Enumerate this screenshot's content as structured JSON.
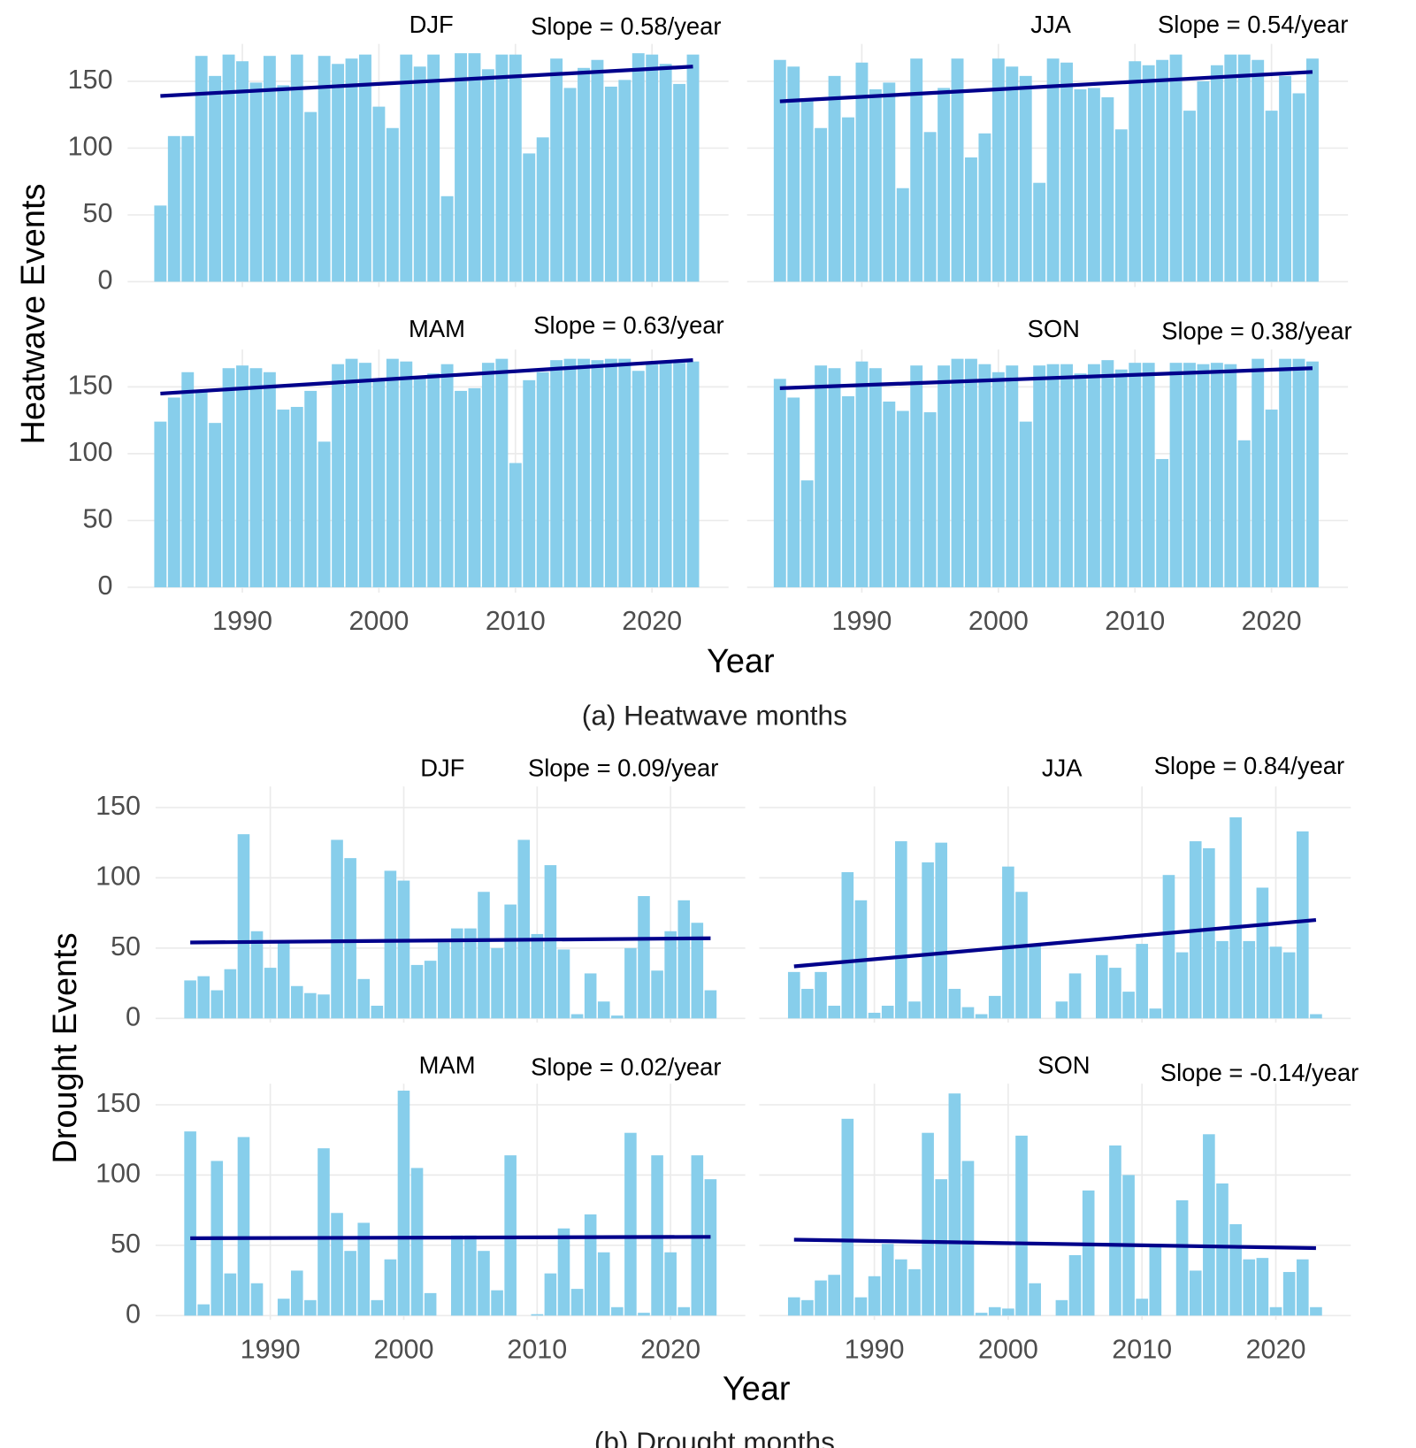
{
  "figures": [
    {
      "caption": "(a) Heatwave months",
      "xlabel": "Year",
      "ylabel": "Heatwave Events"
    },
    {
      "caption": "(b) Drought months",
      "xlabel": "Year",
      "ylabel": "Drought Events"
    }
  ],
  "chart_data": [
    {
      "type": "bar",
      "title": "DJF",
      "annotation": "Slope = 0.58/year",
      "color": "#87ceeb",
      "grid": true,
      "x": [
        1984,
        1985,
        1986,
        1987,
        1988,
        1989,
        1990,
        1991,
        1992,
        1993,
        1994,
        1995,
        1996,
        1997,
        1998,
        1999,
        2000,
        2001,
        2002,
        2003,
        2004,
        2005,
        2006,
        2007,
        2008,
        2009,
        2010,
        2011,
        2012,
        2013,
        2014,
        2015,
        2016,
        2017,
        2018,
        2019,
        2020,
        2021,
        2022,
        2023
      ],
      "values": [
        57,
        109,
        109,
        169,
        154,
        170,
        165,
        149,
        169,
        147,
        170,
        127,
        169,
        163,
        167,
        170,
        131,
        115,
        170,
        161,
        170,
        64,
        171,
        171,
        159,
        170,
        170,
        96,
        108,
        167,
        145,
        160,
        166,
        146,
        151,
        171,
        170,
        163,
        148,
        170
      ],
      "trend": {
        "color": "#00008b",
        "x": [
          1984,
          2023
        ],
        "values": [
          139,
          161
        ]
      },
      "xlim": [
        1981.6,
        2025.6
      ],
      "xticks": [
        1990,
        2000,
        2010,
        2020
      ],
      "ylim": [
        -4,
        178
      ],
      "yticks": [
        0,
        50,
        100,
        150
      ]
    },
    {
      "type": "bar",
      "title": "JJA",
      "annotation": "Slope = 0.54/year",
      "color": "#87ceeb",
      "grid": true,
      "x": [
        1984,
        1985,
        1986,
        1987,
        1988,
        1989,
        1990,
        1991,
        1992,
        1993,
        1994,
        1995,
        1996,
        1997,
        1998,
        1999,
        2000,
        2001,
        2002,
        2003,
        2004,
        2005,
        2006,
        2007,
        2008,
        2009,
        2010,
        2011,
        2012,
        2013,
        2014,
        2015,
        2016,
        2017,
        2018,
        2019,
        2020,
        2021,
        2022,
        2023
      ],
      "values": [
        166,
        161,
        136,
        115,
        154,
        123,
        164,
        144,
        149,
        70,
        167,
        112,
        145,
        167,
        93,
        111,
        167,
        161,
        154,
        74,
        167,
        164,
        144,
        145,
        138,
        114,
        165,
        162,
        166,
        170,
        128,
        150,
        162,
        170,
        170,
        166,
        128,
        154,
        141,
        167
      ],
      "trend": {
        "color": "#00008b",
        "x": [
          1984,
          2023
        ],
        "values": [
          135,
          157
        ]
      },
      "xlim": [
        1981.6,
        2025.6
      ],
      "xticks": [
        1990,
        2000,
        2010,
        2020
      ],
      "ylim": [
        -4,
        178
      ],
      "yticks": [
        0,
        50,
        100,
        150
      ]
    },
    {
      "type": "bar",
      "title": "MAM",
      "annotation": "Slope = 0.63/year",
      "color": "#87ceeb",
      "grid": true,
      "x": [
        1984,
        1985,
        1986,
        1987,
        1988,
        1989,
        1990,
        1991,
        1992,
        1993,
        1994,
        1995,
        1996,
        1997,
        1998,
        1999,
        2000,
        2001,
        2002,
        2003,
        2004,
        2005,
        2006,
        2007,
        2008,
        2009,
        2010,
        2011,
        2012,
        2013,
        2014,
        2015,
        2016,
        2017,
        2018,
        2019,
        2020,
        2021,
        2022,
        2023
      ],
      "values": [
        124,
        142,
        161,
        146,
        123,
        164,
        166,
        164,
        161,
        133,
        135,
        147,
        109,
        167,
        171,
        168,
        155,
        171,
        169,
        158,
        160,
        167,
        147,
        149,
        168,
        171,
        93,
        155,
        161,
        170,
        171,
        171,
        170,
        171,
        171,
        162,
        167,
        168,
        168,
        169
      ],
      "trend": {
        "color": "#00008b",
        "x": [
          1984,
          2023
        ],
        "values": [
          145,
          170
        ]
      },
      "xlim": [
        1981.6,
        2025.6
      ],
      "xticks": [
        1990,
        2000,
        2010,
        2020
      ],
      "ylim": [
        -4,
        178
      ],
      "yticks": [
        0,
        50,
        100,
        150
      ]
    },
    {
      "type": "bar",
      "title": "SON",
      "annotation": "Slope = 0.38/year",
      "color": "#87ceeb",
      "grid": true,
      "x": [
        1984,
        1985,
        1986,
        1987,
        1988,
        1989,
        1990,
        1991,
        1992,
        1993,
        1994,
        1995,
        1996,
        1997,
        1998,
        1999,
        2000,
        2001,
        2002,
        2003,
        2004,
        2005,
        2006,
        2007,
        2008,
        2009,
        2010,
        2011,
        2012,
        2013,
        2014,
        2015,
        2016,
        2017,
        2018,
        2019,
        2020,
        2021,
        2022,
        2023
      ],
      "values": [
        156,
        142,
        80,
        166,
        164,
        143,
        169,
        164,
        139,
        132,
        166,
        131,
        166,
        171,
        171,
        167,
        161,
        166,
        124,
        166,
        167,
        167,
        160,
        167,
        170,
        163,
        168,
        168,
        96,
        168,
        168,
        167,
        168,
        167,
        110,
        171,
        133,
        171,
        171,
        169
      ],
      "trend": {
        "color": "#00008b",
        "x": [
          1984,
          2023
        ],
        "values": [
          149,
          164
        ]
      },
      "xlim": [
        1981.6,
        2025.6
      ],
      "xticks": [
        1990,
        2000,
        2010,
        2020
      ],
      "ylim": [
        -4,
        178
      ],
      "yticks": [
        0,
        50,
        100,
        150
      ]
    },
    {
      "type": "bar",
      "title": "DJF",
      "annotation": "Slope = 0.09/year",
      "color": "#87ceeb",
      "grid": true,
      "x": [
        1984,
        1985,
        1986,
        1987,
        1988,
        1989,
        1990,
        1991,
        1992,
        1993,
        1994,
        1995,
        1996,
        1997,
        1998,
        1999,
        2000,
        2001,
        2002,
        2003,
        2004,
        2005,
        2006,
        2007,
        2008,
        2009,
        2010,
        2011,
        2012,
        2013,
        2014,
        2015,
        2016,
        2017,
        2018,
        2019,
        2020,
        2021,
        2022,
        2023
      ],
      "values": [
        27,
        30,
        20,
        35,
        131,
        62,
        36,
        54,
        23,
        18,
        17,
        127,
        114,
        28,
        9,
        105,
        98,
        38,
        41,
        54,
        64,
        64,
        90,
        50,
        81,
        127,
        60,
        109,
        49,
        3,
        32,
        12,
        2,
        50,
        87,
        34,
        62,
        84,
        68,
        20
      ],
      "trend": {
        "color": "#00008b",
        "x": [
          1984,
          2023
        ],
        "values": [
          54,
          57
        ]
      },
      "xlim": [
        1981.4,
        2025.6
      ],
      "xticks": [
        1990,
        2000,
        2010,
        2020
      ],
      "ylim": [
        -3,
        165
      ],
      "yticks": [
        0,
        50,
        100,
        150
      ]
    },
    {
      "type": "bar",
      "title": "JJA",
      "annotation": "Slope = 0.84/year",
      "color": "#87ceeb",
      "grid": true,
      "x": [
        1984,
        1985,
        1986,
        1987,
        1988,
        1989,
        1990,
        1991,
        1992,
        1993,
        1994,
        1995,
        1996,
        1997,
        1998,
        1999,
        2000,
        2001,
        2002,
        2003,
        2004,
        2005,
        2006,
        2007,
        2008,
        2009,
        2010,
        2011,
        2012,
        2013,
        2014,
        2015,
        2016,
        2017,
        2018,
        2019,
        2020,
        2021,
        2022,
        2023
      ],
      "values": [
        33,
        21,
        33,
        9,
        104,
        84,
        4,
        9,
        126,
        12,
        111,
        125,
        21,
        8,
        3,
        16,
        108,
        90,
        52,
        0,
        12,
        32,
        0,
        45,
        36,
        19,
        53,
        7,
        102,
        47,
        126,
        121,
        55,
        143,
        55,
        93,
        51,
        47,
        133,
        3
      ],
      "trend": {
        "color": "#00008b",
        "x": [
          1984,
          2023
        ],
        "values": [
          37,
          70
        ]
      },
      "xlim": [
        1981.4,
        2025.6
      ],
      "xticks": [
        1990,
        2000,
        2010,
        2020
      ],
      "ylim": [
        -3,
        165
      ],
      "yticks": [
        0,
        50,
        100,
        150
      ]
    },
    {
      "type": "bar",
      "title": "MAM",
      "annotation": "Slope = 0.02/year",
      "color": "#87ceeb",
      "grid": true,
      "x": [
        1984,
        1985,
        1986,
        1987,
        1988,
        1989,
        1990,
        1991,
        1992,
        1993,
        1994,
        1995,
        1996,
        1997,
        1998,
        1999,
        2000,
        2001,
        2002,
        2003,
        2004,
        2005,
        2006,
        2007,
        2008,
        2009,
        2010,
        2011,
        2012,
        2013,
        2014,
        2015,
        2016,
        2017,
        2018,
        2019,
        2020,
        2021,
        2022,
        2023
      ],
      "values": [
        131,
        8,
        110,
        30,
        127,
        23,
        0,
        12,
        32,
        11,
        119,
        73,
        46,
        66,
        11,
        40,
        160,
        105,
        16,
        0,
        57,
        57,
        46,
        18,
        114,
        0,
        1,
        30,
        62,
        19,
        72,
        45,
        6,
        130,
        2,
        114,
        45,
        6,
        114,
        97
      ],
      "trend": {
        "color": "#00008b",
        "x": [
          1984,
          2023
        ],
        "values": [
          55,
          56
        ]
      },
      "xlim": [
        1981.4,
        2025.6
      ],
      "xticks": [
        1990,
        2000,
        2010,
        2020
      ],
      "ylim": [
        -3,
        165
      ],
      "yticks": [
        0,
        50,
        100,
        150
      ]
    },
    {
      "type": "bar",
      "title": "SON",
      "annotation": "Slope = -0.14/year",
      "color": "#87ceeb",
      "grid": true,
      "x": [
        1984,
        1985,
        1986,
        1987,
        1988,
        1989,
        1990,
        1991,
        1992,
        1993,
        1994,
        1995,
        1996,
        1997,
        1998,
        1999,
        2000,
        2001,
        2002,
        2003,
        2004,
        2005,
        2006,
        2007,
        2008,
        2009,
        2010,
        2011,
        2012,
        2013,
        2014,
        2015,
        2016,
        2017,
        2018,
        2019,
        2020,
        2021,
        2022,
        2023
      ],
      "values": [
        13,
        11,
        25,
        29,
        140,
        13,
        28,
        51,
        40,
        33,
        130,
        97,
        158,
        110,
        2,
        6,
        5,
        128,
        23,
        0,
        11,
        43,
        89,
        0,
        121,
        100,
        12,
        50,
        0,
        82,
        32,
        129,
        94,
        65,
        40,
        41,
        6,
        31,
        40,
        6
      ],
      "trend": {
        "color": "#00008b",
        "x": [
          1984,
          2023
        ],
        "values": [
          54,
          48
        ]
      },
      "xlim": [
        1981.4,
        2025.6
      ],
      "xticks": [
        1990,
        2000,
        2010,
        2020
      ],
      "ylim": [
        -3,
        165
      ],
      "yticks": [
        0,
        50,
        100,
        150
      ]
    }
  ]
}
